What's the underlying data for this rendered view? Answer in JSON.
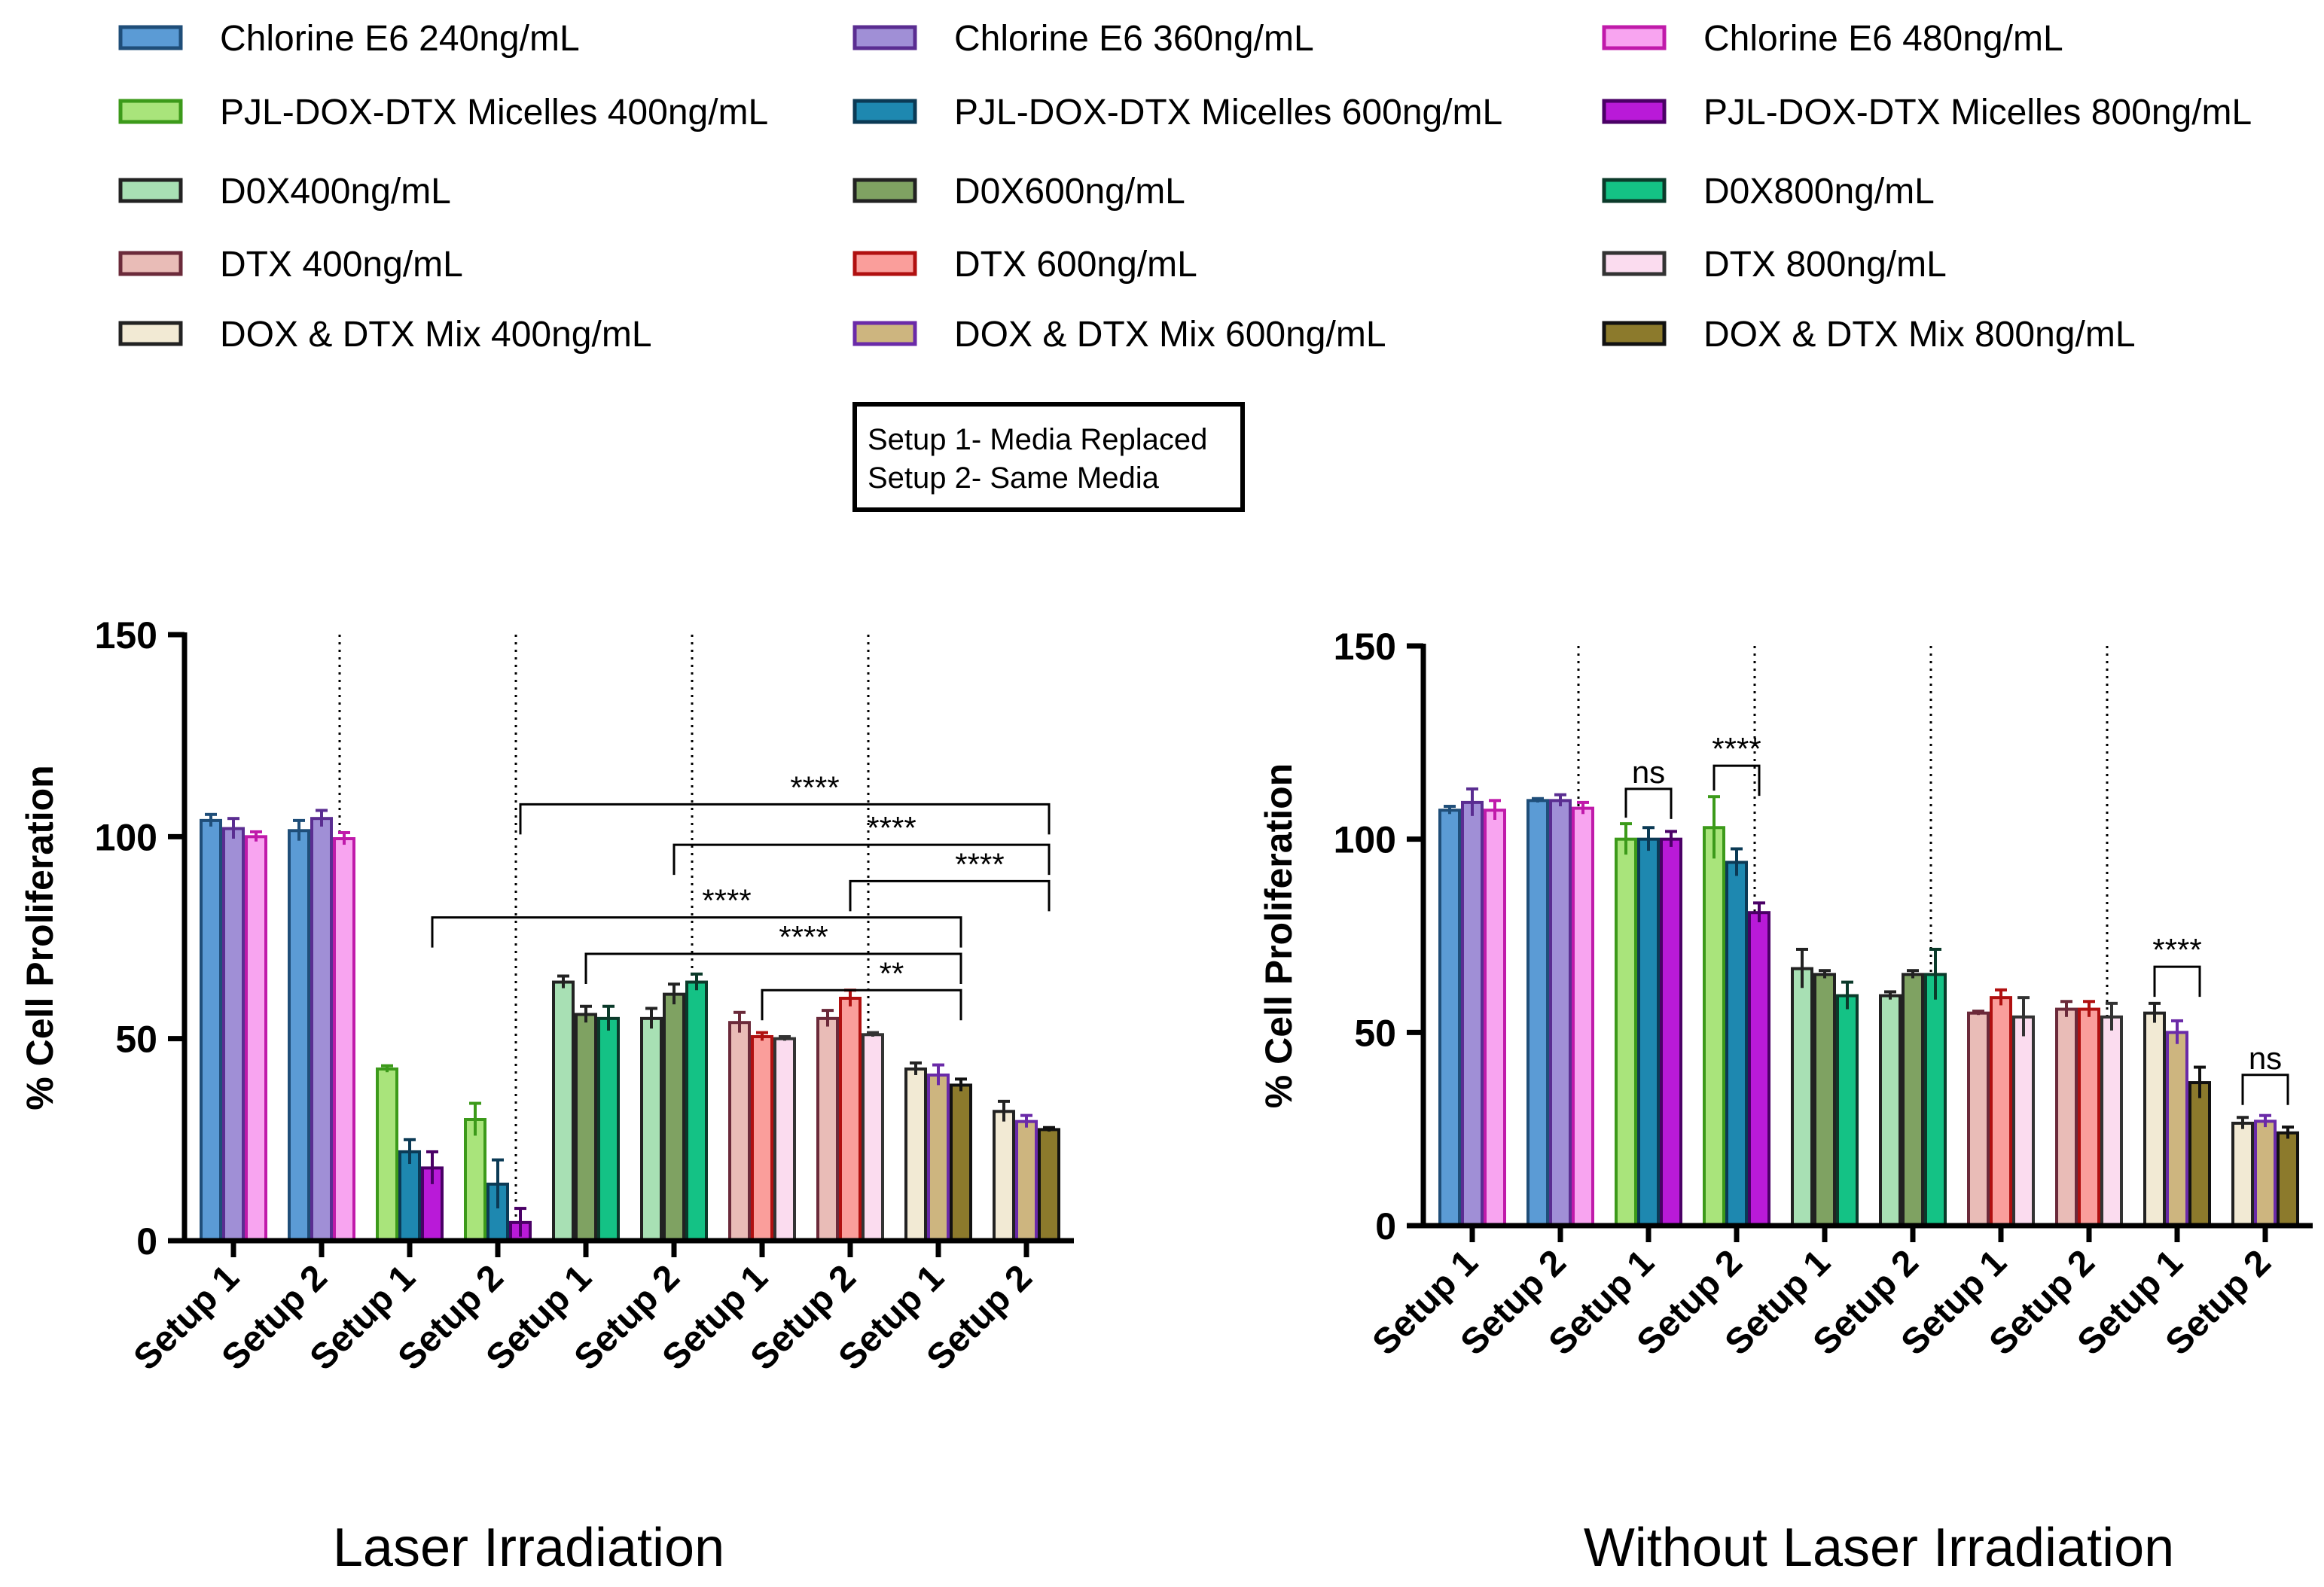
{
  "legend": [
    {
      "label": "Chlorine E6 240ng/mL",
      "fill": "#5b9bd5",
      "stroke": "#1f4e79"
    },
    {
      "label": "Chlorine E6 360ng/mL",
      "fill": "#a08fd6",
      "stroke": "#5a2d91"
    },
    {
      "label": "Chlorine E6 480ng/mL",
      "fill": "#f8a4f0",
      "stroke": "#c01aaa"
    },
    {
      "label": "PJL-DOX-DTX Micelles 400ng/mL",
      "fill": "#a9e47b",
      "stroke": "#3c9a1a"
    },
    {
      "label": "PJL-DOX-DTX Micelles 600ng/mL",
      "fill": "#1e88b0",
      "stroke": "#0b3a55"
    },
    {
      "label": "PJL-DOX-DTX Micelles 800ng/mL",
      "fill": "#b91ad8",
      "stroke": "#4a0066"
    },
    {
      "label": "D0X400ng/mL",
      "fill": "#a8e0b4",
      "stroke": "#222222"
    },
    {
      "label": "D0X600ng/mL",
      "fill": "#7fa262",
      "stroke": "#222222"
    },
    {
      "label": "D0X800ng/mL",
      "fill": "#14c285",
      "stroke": "#0b3a2a"
    },
    {
      "label": "DTX 400ng/mL",
      "fill": "#e9bcb7",
      "stroke": "#6b2a3a"
    },
    {
      "label": "DTX 600ng/mL",
      "fill": "#fa9e9b",
      "stroke": "#b01010"
    },
    {
      "label": "DTX 800ng/mL",
      "fill": "#fbdcef",
      "stroke": "#333333"
    },
    {
      "label": "DOX & DTX Mix 400ng/mL",
      "fill": "#f2ead4",
      "stroke": "#222222"
    },
    {
      "label": "DOX & DTX Mix 600ng/mL",
      "fill": "#cdb57f",
      "stroke": "#6a2aa8"
    },
    {
      "label": "DOX & DTX Mix 800ng/mL",
      "fill": "#8c7a2c",
      "stroke": "#111111"
    }
  ],
  "note": {
    "line1": "Setup 1- Media Replaced",
    "line2": "Setup 2- Same Media"
  },
  "chart_data": [
    {
      "type": "bar",
      "caption": "Laser Irradiation",
      "ylabel": "% Cell Proliferation",
      "ylim": [
        0,
        150
      ],
      "yticks": [
        0,
        50,
        100,
        150
      ],
      "categories": [
        "Setup 1",
        "Setup 2",
        "Setup 1",
        "Setup 2",
        "Setup 1",
        "Setup 2",
        "Setup 1",
        "Setup 2",
        "Setup 1",
        "Setup 2"
      ],
      "groups": [
        {
          "series": [
            0,
            1,
            2
          ],
          "values": [
            104,
            102,
            100
          ],
          "errors": [
            1.5,
            2.5,
            1.2
          ]
        },
        {
          "series": [
            0,
            1,
            2
          ],
          "values": [
            101.5,
            104.5,
            99.5
          ],
          "errors": [
            2.5,
            2,
            1.5
          ]
        },
        {
          "series": [
            3,
            4,
            5
          ],
          "values": [
            42.5,
            22,
            18
          ],
          "errors": [
            0.8,
            3,
            4
          ]
        },
        {
          "series": [
            3,
            4,
            5
          ],
          "values": [
            30,
            14,
            4.5
          ],
          "errors": [
            4,
            6,
            3.5
          ]
        },
        {
          "series": [
            6,
            7,
            8
          ],
          "values": [
            64,
            56,
            55
          ],
          "errors": [
            1.5,
            2,
            3
          ]
        },
        {
          "series": [
            6,
            7,
            8
          ],
          "values": [
            55,
            61,
            64
          ],
          "errors": [
            2.5,
            2.5,
            2
          ]
        },
        {
          "series": [
            9,
            10,
            11
          ],
          "values": [
            54,
            50.5,
            50
          ],
          "errors": [
            2.5,
            1,
            0.5
          ]
        },
        {
          "series": [
            9,
            10,
            11
          ],
          "values": [
            55,
            60,
            51
          ],
          "errors": [
            2,
            2,
            0.5
          ]
        },
        {
          "series": [
            12,
            13,
            14
          ],
          "values": [
            42.5,
            41,
            38.5
          ],
          "errors": [
            1.5,
            2.5,
            1.5
          ]
        },
        {
          "series": [
            12,
            13,
            14
          ],
          "values": [
            32,
            29.5,
            27.5
          ],
          "errors": [
            2.5,
            1.5,
            0.5
          ]
        }
      ],
      "significance": [
        {
          "label": "****",
          "from": [
            3,
            2
          ],
          "to": [
            9,
            2
          ],
          "level": 108
        },
        {
          "label": "****",
          "from": [
            5,
            1
          ],
          "to": [
            9,
            2
          ],
          "level": 98
        },
        {
          "label": "****",
          "from": [
            7,
            1
          ],
          "to": [
            9,
            2
          ],
          "level": 89
        },
        {
          "label": "****",
          "from": [
            2,
            2
          ],
          "to": [
            8,
            2
          ],
          "level": 80
        },
        {
          "label": "****",
          "from": [
            4,
            1
          ],
          "to": [
            8,
            2
          ],
          "level": 71
        },
        {
          "label": "**",
          "from": [
            6,
            1
          ],
          "to": [
            8,
            2
          ],
          "level": 62
        }
      ]
    },
    {
      "type": "bar",
      "caption": "Without Laser Irradiation",
      "ylabel": "% Cell Proliferation",
      "ylim": [
        0,
        150
      ],
      "yticks": [
        0,
        50,
        100,
        150
      ],
      "categories": [
        "Setup 1",
        "Setup 2",
        "Setup 1",
        "Setup 2",
        "Setup 1",
        "Setup 2",
        "Setup 1",
        "Setup 2",
        "Setup 1",
        "Setup 2"
      ],
      "groups": [
        {
          "series": [
            0,
            1,
            2
          ],
          "values": [
            107.5,
            109.5,
            107.5
          ],
          "errors": [
            1,
            3.5,
            2.5
          ]
        },
        {
          "series": [
            0,
            1,
            2
          ],
          "values": [
            110,
            110,
            108
          ],
          "errors": [
            0.5,
            1.5,
            1.5
          ]
        },
        {
          "series": [
            3,
            4,
            5
          ],
          "values": [
            100,
            100,
            100
          ],
          "errors": [
            4,
            3,
            2
          ]
        },
        {
          "series": [
            3,
            4,
            5
          ],
          "values": [
            103,
            94,
            81
          ],
          "errors": [
            8,
            3.5,
            2.5
          ]
        },
        {
          "series": [
            6,
            7,
            8
          ],
          "values": [
            66.5,
            65,
            59.5
          ],
          "errors": [
            5,
            1,
            3.5
          ]
        },
        {
          "series": [
            6,
            7,
            8
          ],
          "values": [
            59.5,
            65,
            65
          ],
          "errors": [
            1,
            1,
            6.5
          ]
        },
        {
          "series": [
            9,
            10,
            11
          ],
          "values": [
            55,
            59,
            54
          ],
          "errors": [
            0.5,
            2,
            5
          ]
        },
        {
          "series": [
            9,
            10,
            11
          ],
          "values": [
            56,
            56,
            54
          ],
          "errors": [
            2,
            2,
            3.5
          ]
        },
        {
          "series": [
            12,
            13,
            14
          ],
          "values": [
            55,
            50,
            37
          ],
          "errors": [
            2.5,
            3,
            4
          ]
        },
        {
          "series": [
            12,
            13,
            14
          ],
          "values": [
            26.5,
            27,
            24
          ],
          "errors": [
            1.5,
            1.5,
            1.5
          ]
        }
      ],
      "significance": [
        {
          "label": "ns",
          "from": [
            2,
            0
          ],
          "to": [
            2,
            2
          ],
          "level": 113
        },
        {
          "label": "****",
          "from": [
            3,
            0
          ],
          "to": [
            3,
            2
          ],
          "level": 119
        },
        {
          "label": "****",
          "from": [
            8,
            0
          ],
          "to": [
            8,
            2
          ],
          "level": 67
        },
        {
          "label": "ns",
          "from": [
            9,
            0
          ],
          "to": [
            9,
            2
          ],
          "level": 39
        }
      ]
    }
  ]
}
